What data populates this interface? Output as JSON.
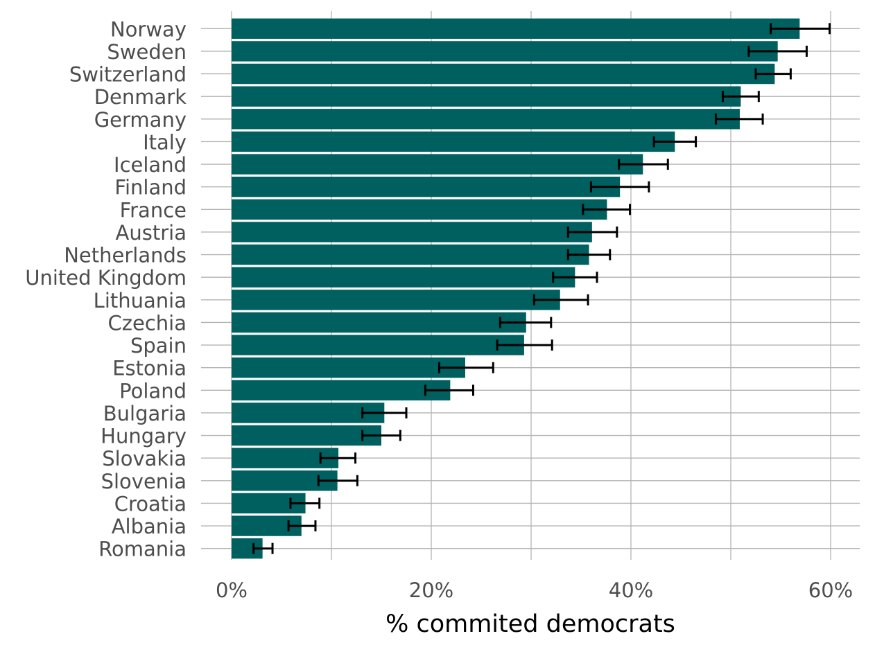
{
  "chart_data": {
    "type": "bar",
    "orientation": "horizontal",
    "title": "",
    "xlabel": "% commited democrats",
    "ylabel": "",
    "xlim": [
      0,
      60
    ],
    "x_ticks": [
      {
        "value": 0,
        "label": "0%"
      },
      {
        "value": 20,
        "label": "20%"
      },
      {
        "value": 40,
        "label": "40%"
      },
      {
        "value": 60,
        "label": "60%"
      }
    ],
    "grid": true,
    "bar_color": "#005f5f",
    "error_bar_color": "#000000",
    "grid_color": "#b3b3b3",
    "categories": [
      "Norway",
      "Sweden",
      "Switzerland",
      "Denmark",
      "Germany",
      "Italy",
      "Iceland",
      "Finland",
      "France",
      "Austria",
      "Netherlands",
      "United Kingdom",
      "Lithuania",
      "Czechia",
      "Spain",
      "Estonia",
      "Poland",
      "Bulgaria",
      "Hungary",
      "Slovakia",
      "Slovenia",
      "Croatia",
      "Albania",
      "Romania"
    ],
    "values": [
      56.9,
      54.7,
      54.4,
      51.0,
      50.9,
      44.4,
      41.2,
      38.9,
      37.6,
      36.1,
      35.8,
      34.4,
      32.9,
      29.5,
      29.3,
      23.4,
      21.9,
      15.3,
      15.0,
      10.7,
      10.6,
      7.4,
      7.0,
      3.1
    ],
    "lower": [
      54.0,
      51.8,
      52.5,
      49.2,
      48.5,
      42.3,
      38.8,
      36.0,
      35.2,
      33.7,
      33.7,
      32.2,
      30.3,
      26.9,
      26.6,
      20.8,
      19.4,
      13.1,
      13.1,
      8.9,
      8.7,
      5.9,
      5.7,
      2.2
    ],
    "upper": [
      59.9,
      57.6,
      56.0,
      52.8,
      53.2,
      46.5,
      43.7,
      41.8,
      39.9,
      38.6,
      37.9,
      36.6,
      35.7,
      32.0,
      32.1,
      26.2,
      24.2,
      17.5,
      16.9,
      12.4,
      12.6,
      8.8,
      8.4,
      4.1
    ]
  }
}
